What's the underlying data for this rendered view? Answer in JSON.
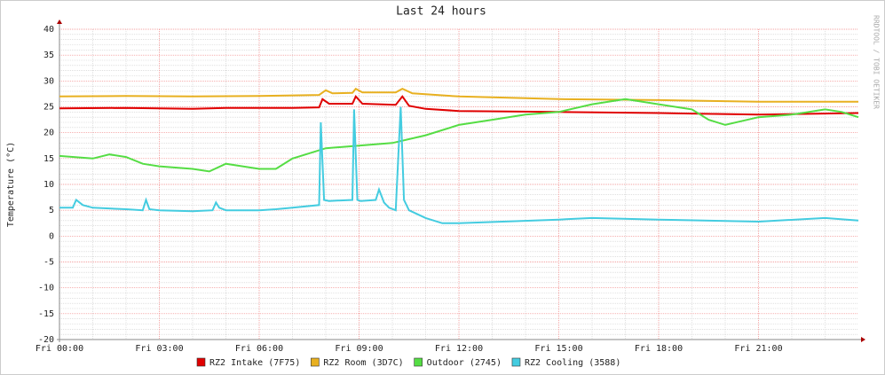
{
  "chart_data": {
    "type": "line",
    "title": "Last 24 hours",
    "y_label": "Temperature (°C)",
    "watermark": "RRDTOOL / TOBI OETIKER",
    "xlim": [
      0,
      24
    ],
    "xticks": [
      {
        "value": 0,
        "label": "Fri 00:00"
      },
      {
        "value": 3,
        "label": "Fri 03:00"
      },
      {
        "value": 6,
        "label": "Fri 06:00"
      },
      {
        "value": 9,
        "label": "Fri 09:00"
      },
      {
        "value": 12,
        "label": "Fri 12:00"
      },
      {
        "value": 15,
        "label": "Fri 15:00"
      },
      {
        "value": 18,
        "label": "Fri 18:00"
      },
      {
        "value": 21,
        "label": "Fri 21:00"
      }
    ],
    "ylim": [
      -20,
      40
    ],
    "yticks": [
      -20,
      -15,
      -10,
      -5,
      0,
      5,
      10,
      15,
      20,
      25,
      30,
      35,
      40
    ],
    "grid": true,
    "series": [
      {
        "name": "RZ2 Intake (7F75)",
        "color": "#e00000",
        "x": [
          0,
          2,
          4,
          5,
          7,
          7.8,
          7.9,
          8.1,
          8.8,
          8.9,
          9.1,
          10.1,
          10.3,
          10.5,
          11,
          12,
          15,
          18,
          21,
          24
        ],
        "values": [
          24.7,
          24.8,
          24.6,
          24.8,
          24.8,
          24.9,
          26.5,
          25.6,
          25.6,
          27,
          25.6,
          25.4,
          27,
          25.2,
          24.6,
          24.2,
          24,
          23.8,
          23.5,
          23.8
        ]
      },
      {
        "name": "RZ2 Room (3D7C)",
        "color": "#e8b020",
        "x": [
          0,
          2,
          4,
          6,
          7.8,
          8,
          8.2,
          8.8,
          8.9,
          9.1,
          10.1,
          10.3,
          10.6,
          12,
          15,
          18,
          21,
          24
        ],
        "values": [
          27,
          27.1,
          27,
          27.1,
          27.3,
          28.2,
          27.6,
          27.7,
          28.5,
          27.8,
          27.8,
          28.5,
          27.6,
          27,
          26.5,
          26.3,
          26,
          26
        ]
      },
      {
        "name": "Outdoor (2745)",
        "color": "#55dd44",
        "x": [
          0,
          1,
          1.5,
          2,
          2.5,
          3,
          4,
          4.5,
          5,
          5.5,
          6,
          6.5,
          7,
          8,
          9,
          10,
          11,
          12,
          13,
          14,
          15,
          16,
          17,
          18,
          19,
          19.5,
          20,
          21,
          22,
          23,
          23.5,
          24
        ],
        "values": [
          15.5,
          15,
          15.8,
          15.3,
          14,
          13.5,
          13,
          12.5,
          14,
          13.5,
          13,
          13,
          15,
          17,
          17.5,
          18,
          19.5,
          21.5,
          22.5,
          23.5,
          24,
          25.5,
          26.5,
          25.5,
          24.5,
          22.5,
          21.5,
          23,
          23.5,
          24.5,
          24,
          23
        ]
      },
      {
        "name": "RZ2 Cooling (3588)",
        "color": "#44cce0",
        "x": [
          0,
          0.4,
          0.5,
          0.7,
          1,
          2,
          2.5,
          2.6,
          2.7,
          3,
          4,
          4.6,
          4.7,
          4.8,
          5,
          6,
          6.5,
          7,
          7.8,
          7.85,
          7.95,
          8.1,
          8.8,
          8.85,
          8.95,
          9.05,
          9.5,
          9.6,
          9.75,
          9.9,
          10.1,
          10.25,
          10.35,
          10.5,
          11,
          11.5,
          12,
          15,
          16,
          18,
          21,
          23,
          24
        ],
        "values": [
          5.5,
          5.5,
          7,
          6,
          5.5,
          5.2,
          5,
          7,
          5.2,
          5,
          4.8,
          5,
          6.5,
          5.5,
          5,
          5,
          5.2,
          5.5,
          6,
          22,
          7,
          6.8,
          7,
          24.5,
          7,
          6.8,
          7,
          9,
          6.5,
          5.5,
          5,
          25,
          7,
          5,
          3.5,
          2.5,
          2.5,
          3.2,
          3.5,
          3.2,
          2.8,
          3.5,
          3
        ]
      }
    ]
  }
}
